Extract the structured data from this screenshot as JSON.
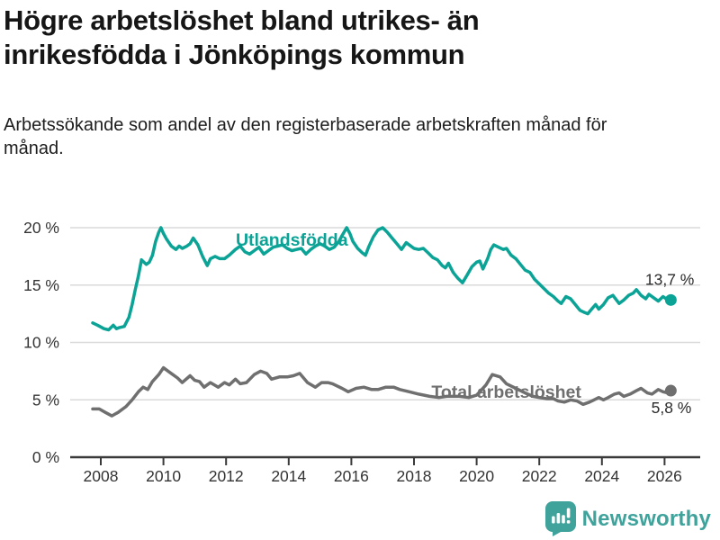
{
  "title": "Högre arbetslöshet bland utrikes- än inrikesfödda i Jönköpings kommun",
  "subtitle": "Arbetssökande som andel av den registerbaserade arbetskraften månad för månad.",
  "branding": {
    "logo_text": "Newsworthy",
    "logo_color": "#3fa29b",
    "logo_icon": "bar-chart-speech-bubble-icon"
  },
  "colors": {
    "accent_teal": "#0aa396",
    "neutral_gray": "#6f6f6f",
    "grid": "#dadada",
    "axis": "#3a3a3a",
    "text_dark": "#161616",
    "value_label": "#2b2b2b"
  },
  "chart_data": {
    "type": "line",
    "title": "Högre arbetslöshet bland utrikes- än inrikesfödda i Jönköpings kommun",
    "subtitle": "Arbetssökande som andel av den registerbaserade arbetskraften månad för månad.",
    "xlabel": "",
    "ylabel": "",
    "unit": "%",
    "grid": "horizontal",
    "legend_position": "inline-labels",
    "x_axis": {
      "ticks": [
        2008,
        2010,
        2012,
        2014,
        2016,
        2018,
        2020,
        2022,
        2024,
        2026
      ]
    },
    "y_axis": {
      "range": [
        0,
        21
      ],
      "ticks": [
        {
          "value": 0,
          "label": "0 %"
        },
        {
          "value": 5,
          "label": "5 %"
        },
        {
          "value": 10,
          "label": "10 %"
        },
        {
          "value": 15,
          "label": "15 %"
        },
        {
          "value": 20,
          "label": "20 %"
        }
      ]
    },
    "series": [
      {
        "name": "Utlandsfödda",
        "color": "#0aa396",
        "end_label": "13,7 %",
        "end_value": 13.7,
        "label_anchor": {
          "year": 2014.1,
          "value": 18.43
        },
        "end_label_offset": [
          26,
          -17
        ],
        "points": [
          [
            2007.74,
            11.7
          ],
          [
            2007.9,
            11.5
          ],
          [
            2008.1,
            11.2
          ],
          [
            2008.25,
            11.1
          ],
          [
            2008.4,
            11.5
          ],
          [
            2008.5,
            11.2
          ],
          [
            2008.6,
            11.3
          ],
          [
            2008.75,
            11.4
          ],
          [
            2008.9,
            12.2
          ],
          [
            2009.0,
            13.3
          ],
          [
            2009.1,
            14.6
          ],
          [
            2009.2,
            15.8
          ],
          [
            2009.3,
            17.2
          ],
          [
            2009.45,
            16.8
          ],
          [
            2009.55,
            17.0
          ],
          [
            2009.65,
            17.6
          ],
          [
            2009.75,
            18.8
          ],
          [
            2009.85,
            19.6
          ],
          [
            2009.92,
            20.0
          ],
          [
            2010.0,
            19.5
          ],
          [
            2010.1,
            19.0
          ],
          [
            2010.25,
            18.4
          ],
          [
            2010.4,
            18.1
          ],
          [
            2010.5,
            18.4
          ],
          [
            2010.6,
            18.2
          ],
          [
            2010.75,
            18.4
          ],
          [
            2010.85,
            18.6
          ],
          [
            2010.95,
            19.1
          ],
          [
            2011.1,
            18.5
          ],
          [
            2011.25,
            17.5
          ],
          [
            2011.4,
            16.7
          ],
          [
            2011.5,
            17.3
          ],
          [
            2011.65,
            17.5
          ],
          [
            2011.8,
            17.3
          ],
          [
            2011.95,
            17.3
          ],
          [
            2012.1,
            17.6
          ],
          [
            2012.3,
            18.1
          ],
          [
            2012.45,
            18.4
          ],
          [
            2012.6,
            17.9
          ],
          [
            2012.75,
            17.7
          ],
          [
            2012.9,
            18.0
          ],
          [
            2013.05,
            18.3
          ],
          [
            2013.2,
            17.7
          ],
          [
            2013.35,
            18.0
          ],
          [
            2013.5,
            18.3
          ],
          [
            2013.65,
            18.4
          ],
          [
            2013.8,
            18.5
          ],
          [
            2013.95,
            18.2
          ],
          [
            2014.1,
            18.0
          ],
          [
            2014.25,
            18.1
          ],
          [
            2014.4,
            18.2
          ],
          [
            2014.55,
            17.7
          ],
          [
            2014.7,
            18.1
          ],
          [
            2014.85,
            18.4
          ],
          [
            2015.0,
            18.6
          ],
          [
            2015.15,
            18.4
          ],
          [
            2015.3,
            18.1
          ],
          [
            2015.45,
            18.3
          ],
          [
            2015.6,
            18.8
          ],
          [
            2015.7,
            19.3
          ],
          [
            2015.85,
            20.0
          ],
          [
            2015.95,
            19.5
          ],
          [
            2016.05,
            18.8
          ],
          [
            2016.2,
            18.2
          ],
          [
            2016.35,
            17.8
          ],
          [
            2016.45,
            17.6
          ],
          [
            2016.55,
            18.3
          ],
          [
            2016.7,
            19.2
          ],
          [
            2016.85,
            19.8
          ],
          [
            2017.0,
            20.0
          ],
          [
            2017.15,
            19.6
          ],
          [
            2017.3,
            19.1
          ],
          [
            2017.45,
            18.6
          ],
          [
            2017.6,
            18.1
          ],
          [
            2017.75,
            18.7
          ],
          [
            2017.9,
            18.4
          ],
          [
            2018.0,
            18.2
          ],
          [
            2018.15,
            18.1
          ],
          [
            2018.3,
            18.2
          ],
          [
            2018.45,
            17.8
          ],
          [
            2018.6,
            17.4
          ],
          [
            2018.75,
            17.2
          ],
          [
            2018.9,
            16.7
          ],
          [
            2019.0,
            16.5
          ],
          [
            2019.1,
            16.9
          ],
          [
            2019.25,
            16.1
          ],
          [
            2019.4,
            15.6
          ],
          [
            2019.55,
            15.2
          ],
          [
            2019.7,
            15.9
          ],
          [
            2019.85,
            16.6
          ],
          [
            2020.0,
            17.0
          ],
          [
            2020.1,
            17.1
          ],
          [
            2020.2,
            16.4
          ],
          [
            2020.35,
            17.3
          ],
          [
            2020.45,
            18.1
          ],
          [
            2020.55,
            18.5
          ],
          [
            2020.7,
            18.3
          ],
          [
            2020.85,
            18.1
          ],
          [
            2020.95,
            18.2
          ],
          [
            2021.1,
            17.6
          ],
          [
            2021.25,
            17.3
          ],
          [
            2021.4,
            16.8
          ],
          [
            2021.55,
            16.3
          ],
          [
            2021.7,
            16.1
          ],
          [
            2021.85,
            15.5
          ],
          [
            2022.0,
            15.1
          ],
          [
            2022.15,
            14.7
          ],
          [
            2022.3,
            14.3
          ],
          [
            2022.45,
            14.0
          ],
          [
            2022.6,
            13.6
          ],
          [
            2022.7,
            13.4
          ],
          [
            2022.85,
            14.0
          ],
          [
            2023.0,
            13.8
          ],
          [
            2023.15,
            13.3
          ],
          [
            2023.3,
            12.8
          ],
          [
            2023.45,
            12.6
          ],
          [
            2023.55,
            12.5
          ],
          [
            2023.7,
            13.0
          ],
          [
            2023.8,
            13.3
          ],
          [
            2023.9,
            12.9
          ],
          [
            2024.05,
            13.3
          ],
          [
            2024.2,
            13.9
          ],
          [
            2024.35,
            14.1
          ],
          [
            2024.55,
            13.4
          ],
          [
            2024.7,
            13.7
          ],
          [
            2024.85,
            14.1
          ],
          [
            2025.0,
            14.3
          ],
          [
            2025.1,
            14.6
          ],
          [
            2025.25,
            14.1
          ],
          [
            2025.4,
            13.8
          ],
          [
            2025.5,
            14.2
          ],
          [
            2025.65,
            13.9
          ],
          [
            2025.8,
            13.6
          ],
          [
            2025.95,
            14.0
          ],
          [
            2026.1,
            13.7
          ],
          [
            2026.2,
            13.7
          ]
        ]
      },
      {
        "name": "Total arbetslöshet",
        "color": "#6f6f6f",
        "end_label": "5,8 %",
        "end_value": 5.8,
        "label_anchor": {
          "year": 2020.95,
          "value": 5.18
        },
        "end_label_offset": [
          23,
          25
        ],
        "points": [
          [
            2007.74,
            4.2
          ],
          [
            2007.95,
            4.2
          ],
          [
            2008.15,
            3.9
          ],
          [
            2008.35,
            3.6
          ],
          [
            2008.55,
            3.9
          ],
          [
            2008.8,
            4.4
          ],
          [
            2009.0,
            5.0
          ],
          [
            2009.2,
            5.7
          ],
          [
            2009.35,
            6.1
          ],
          [
            2009.5,
            5.9
          ],
          [
            2009.65,
            6.6
          ],
          [
            2009.85,
            7.2
          ],
          [
            2010.0,
            7.8
          ],
          [
            2010.15,
            7.5
          ],
          [
            2010.3,
            7.2
          ],
          [
            2010.45,
            6.9
          ],
          [
            2010.6,
            6.5
          ],
          [
            2010.85,
            7.1
          ],
          [
            2011.0,
            6.7
          ],
          [
            2011.15,
            6.6
          ],
          [
            2011.3,
            6.1
          ],
          [
            2011.5,
            6.5
          ],
          [
            2011.75,
            6.1
          ],
          [
            2011.95,
            6.5
          ],
          [
            2012.1,
            6.3
          ],
          [
            2012.3,
            6.8
          ],
          [
            2012.45,
            6.4
          ],
          [
            2012.65,
            6.5
          ],
          [
            2012.9,
            7.2
          ],
          [
            2013.1,
            7.5
          ],
          [
            2013.3,
            7.3
          ],
          [
            2013.45,
            6.8
          ],
          [
            2013.7,
            7.0
          ],
          [
            2013.95,
            7.0
          ],
          [
            2014.15,
            7.1
          ],
          [
            2014.35,
            7.3
          ],
          [
            2014.6,
            6.5
          ],
          [
            2014.85,
            6.1
          ],
          [
            2015.05,
            6.5
          ],
          [
            2015.25,
            6.5
          ],
          [
            2015.4,
            6.4
          ],
          [
            2015.7,
            6.0
          ],
          [
            2015.9,
            5.7
          ],
          [
            2016.15,
            6.0
          ],
          [
            2016.4,
            6.1
          ],
          [
            2016.65,
            5.9
          ],
          [
            2016.85,
            5.9
          ],
          [
            2017.1,
            6.1
          ],
          [
            2017.35,
            6.1
          ],
          [
            2017.55,
            5.9
          ],
          [
            2017.85,
            5.7
          ],
          [
            2018.15,
            5.5
          ],
          [
            2018.5,
            5.3
          ],
          [
            2018.8,
            5.2
          ],
          [
            2019.05,
            5.3
          ],
          [
            2019.45,
            5.3
          ],
          [
            2019.75,
            5.2
          ],
          [
            2020.0,
            5.4
          ],
          [
            2020.3,
            6.3
          ],
          [
            2020.5,
            7.2
          ],
          [
            2020.75,
            7.0
          ],
          [
            2020.95,
            6.4
          ],
          [
            2021.25,
            6.0
          ],
          [
            2021.55,
            5.6
          ],
          [
            2021.8,
            5.3
          ],
          [
            2022.0,
            5.2
          ],
          [
            2022.25,
            5.1
          ],
          [
            2022.45,
            5.1
          ],
          [
            2022.6,
            4.9
          ],
          [
            2022.8,
            4.8
          ],
          [
            2023.0,
            5.0
          ],
          [
            2023.2,
            4.9
          ],
          [
            2023.4,
            4.6
          ],
          [
            2023.6,
            4.8
          ],
          [
            2023.75,
            5.0
          ],
          [
            2023.9,
            5.2
          ],
          [
            2024.05,
            5.0
          ],
          [
            2024.2,
            5.2
          ],
          [
            2024.4,
            5.5
          ],
          [
            2024.55,
            5.6
          ],
          [
            2024.7,
            5.3
          ],
          [
            2024.9,
            5.5
          ],
          [
            2025.1,
            5.8
          ],
          [
            2025.25,
            6.0
          ],
          [
            2025.45,
            5.6
          ],
          [
            2025.6,
            5.5
          ],
          [
            2025.8,
            5.9
          ],
          [
            2025.95,
            5.7
          ],
          [
            2026.1,
            5.6
          ],
          [
            2026.2,
            5.8
          ]
        ]
      }
    ]
  }
}
